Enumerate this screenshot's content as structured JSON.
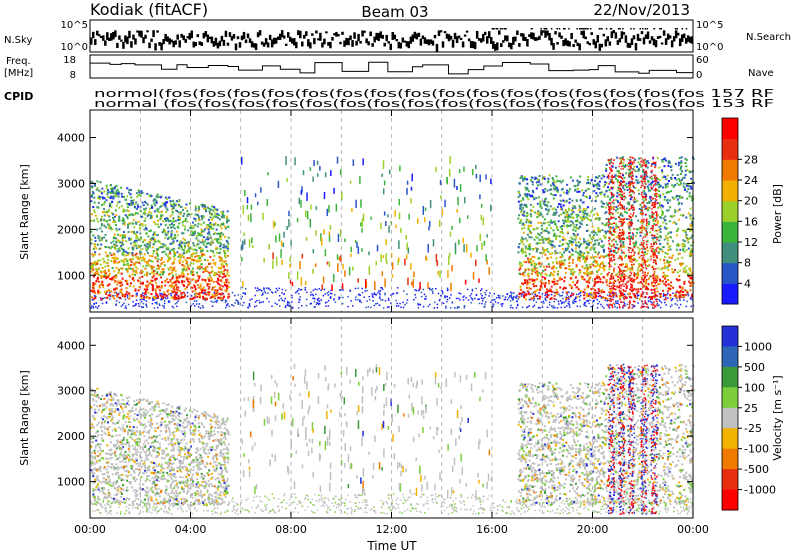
{
  "header": {
    "station": "Kodiak (fitACF)",
    "beam": "Beam 03",
    "date": "22/Nov/2013"
  },
  "strips": {
    "nsky_label": "N.Sky",
    "nsearch_label": "N.Search",
    "noise_ticks": [
      "10^5",
      "10^0"
    ],
    "freq_label_1": "Freq.",
    "freq_label_2": "[MHz]",
    "freq_ticks": [
      "18",
      "8"
    ],
    "nave_label": "Nave",
    "nave_ticks": [
      "60",
      "0"
    ],
    "cpid_label": "CPID",
    "cpid_row1": "normol(fos(fos(fos(fos(fos(fos(fos(fos(fos(fos(fos(fos(fos(fos(fos(fos 157 RF",
    "cpid_row2": "normal (fos(fos(fos(fos(fos(fos(fos(fos(fos(fos(fos(fos(fos(fos(fos(fos 153 RF"
  },
  "chart_data": [
    {
      "type": "heatmap",
      "panel": "power",
      "ylabel": "Slant Range [km]",
      "yticks": [
        1000,
        2000,
        3000,
        4000
      ],
      "ylim": [
        200,
        4600
      ],
      "xticks": [
        "00:00",
        "04:00",
        "08:00",
        "12:00",
        "16:00",
        "20:00",
        "00:00"
      ],
      "xlim_hours": [
        0,
        24
      ],
      "colorbar_label": "Power [dB]",
      "colorbar_ticks": [
        4,
        8,
        12,
        16,
        20,
        24,
        28
      ],
      "colorbar_colors": [
        "#1a1aff",
        "#2855c8",
        "#3f8f7c",
        "#3cb53c",
        "#9bd02a",
        "#f2b000",
        "#f07a00",
        "#e83010",
        "#ff0000"
      ]
    },
    {
      "type": "heatmap",
      "panel": "velocity",
      "ylabel": "Slant Range [km]",
      "yticks": [
        1000,
        2000,
        3000,
        4000
      ],
      "ylim": [
        200,
        4600
      ],
      "xticks": [
        "00:00",
        "04:00",
        "08:00",
        "12:00",
        "16:00",
        "20:00",
        "00:00"
      ],
      "xlim_hours": [
        0,
        24
      ],
      "xlabel": "Time UT",
      "colorbar_label": "Velocity [m s⁻¹]",
      "colorbar_ticks": [
        "1000",
        "500",
        "100",
        "25",
        "-25",
        "-100",
        "-500",
        "-1000"
      ],
      "colorbar_colors": [
        "#2430d8",
        "#2f66b8",
        "#3a9a3a",
        "#7ccf3a",
        "#c0c0c0",
        "#f2b200",
        "#f07a00",
        "#e83010",
        "#ff0000"
      ]
    }
  ]
}
